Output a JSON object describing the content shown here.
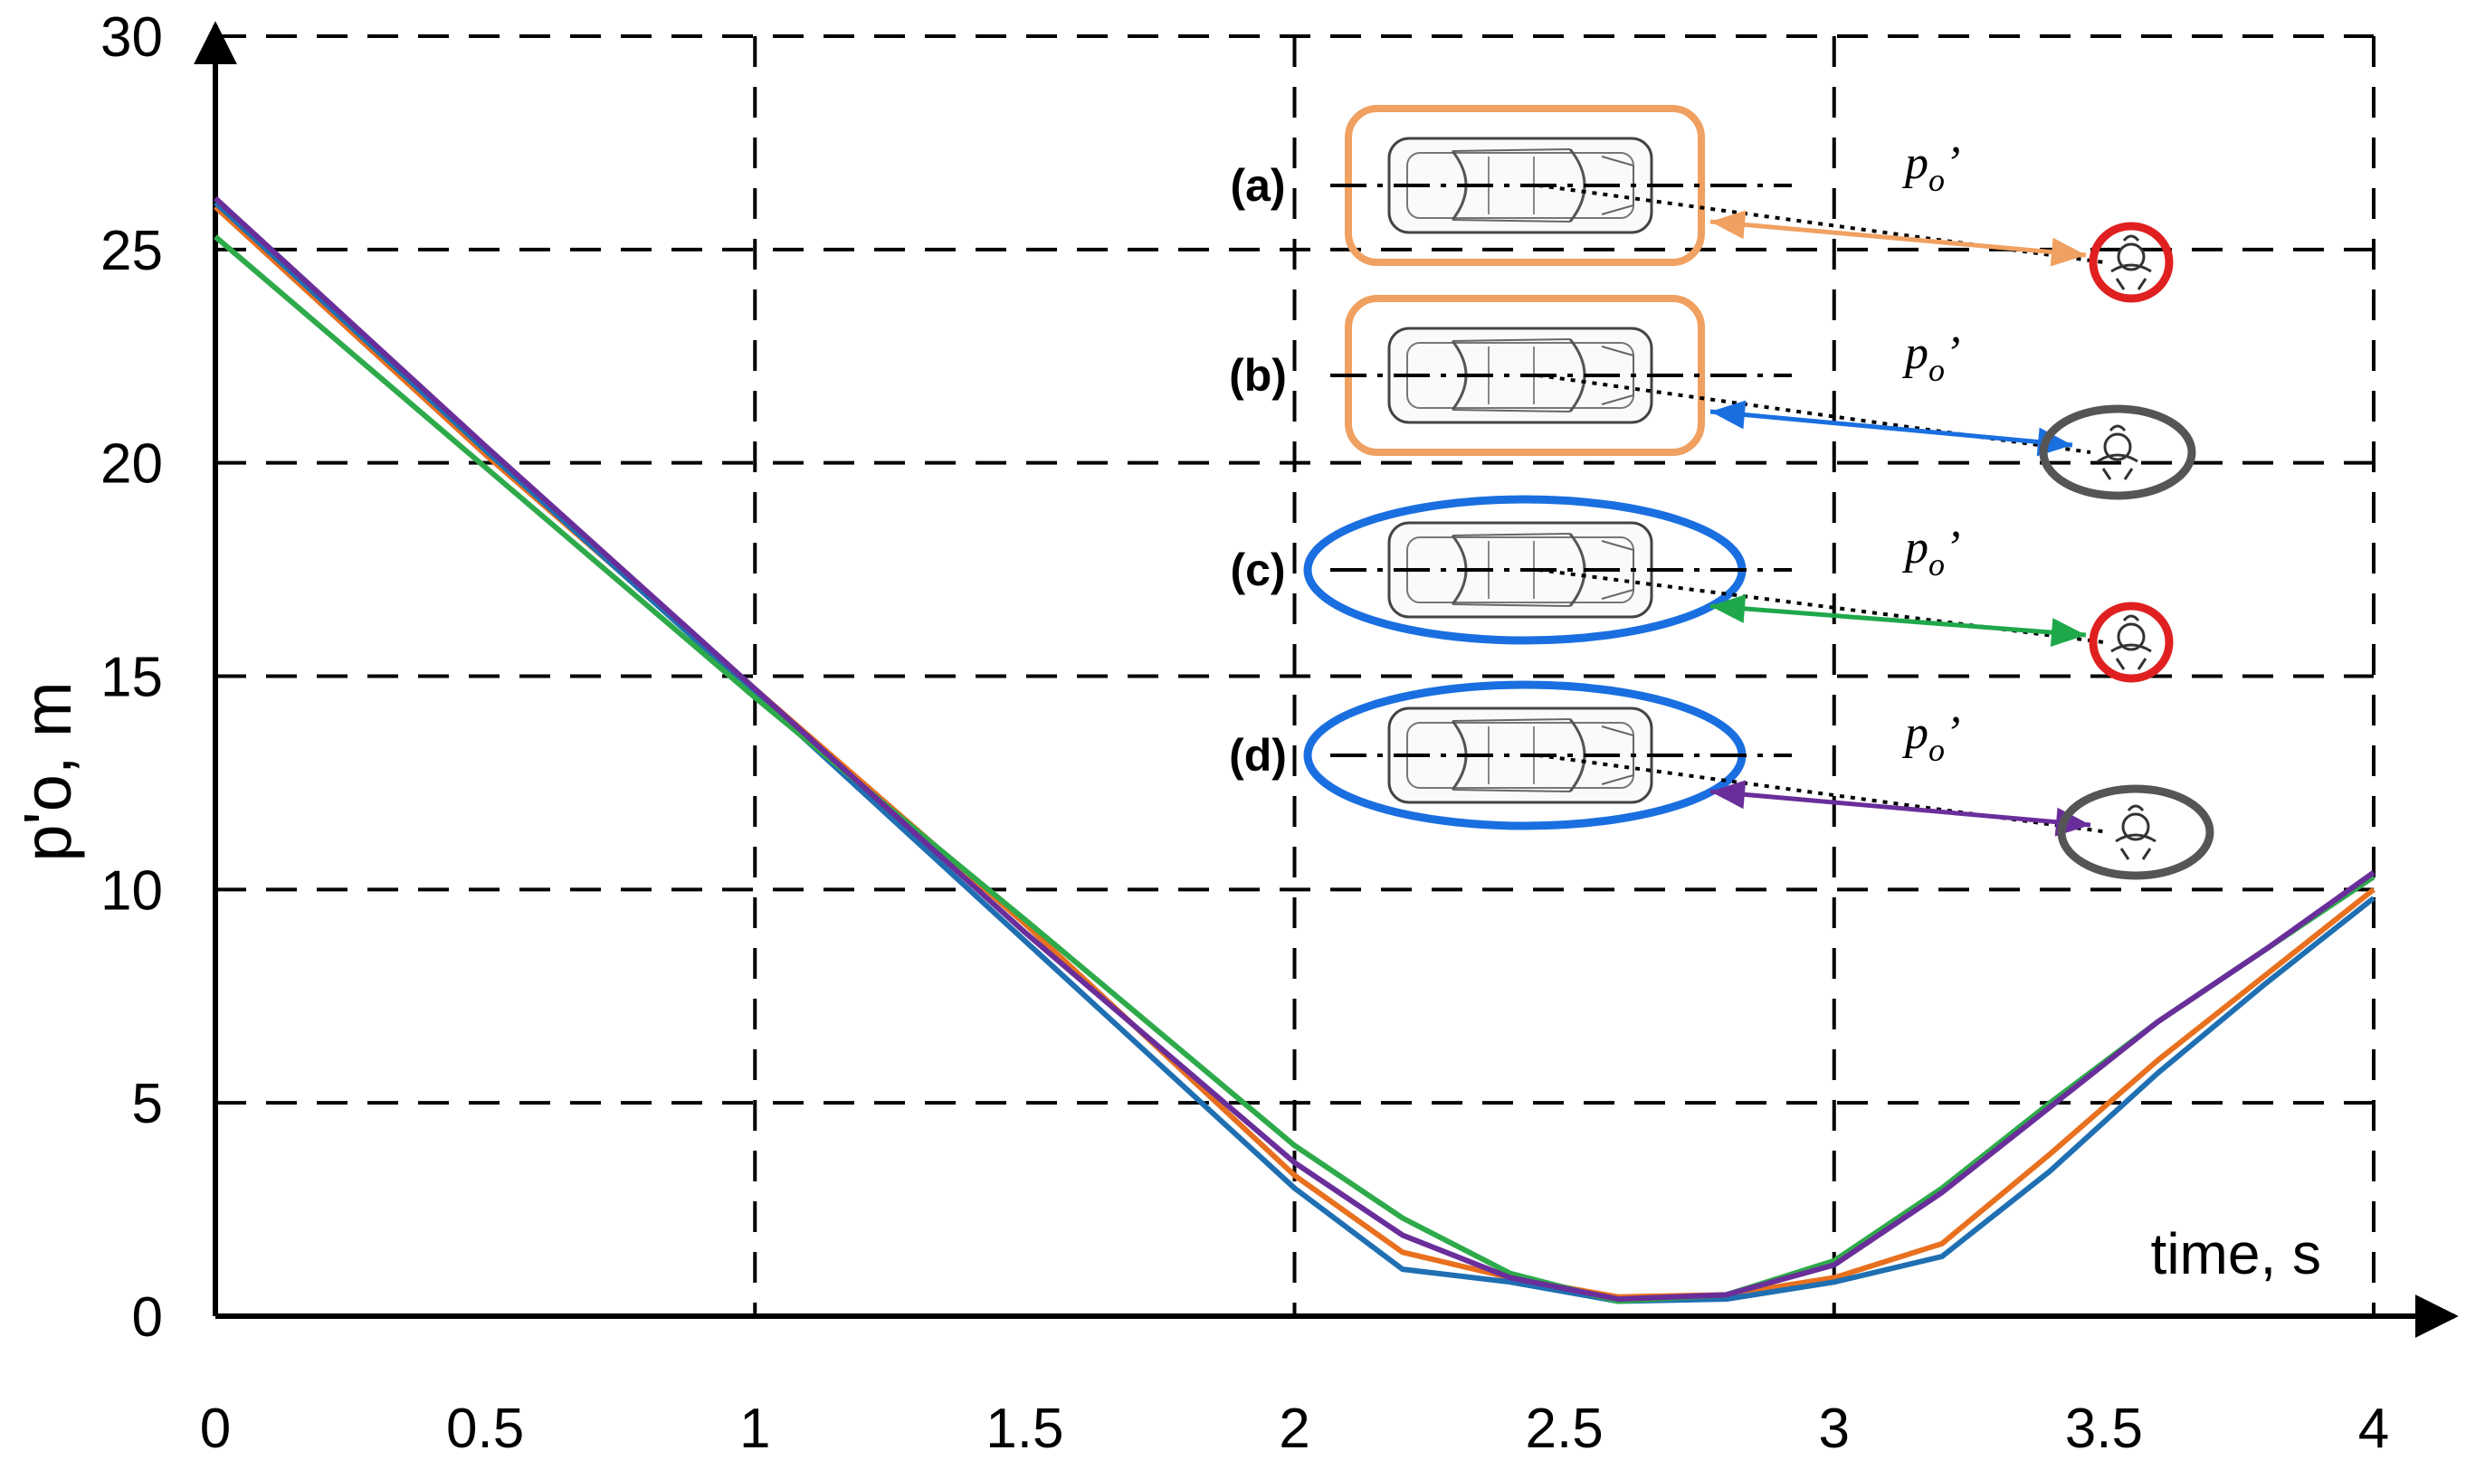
{
  "chart_data": {
    "type": "line",
    "title": "",
    "xlabel": "time, s",
    "ylabel": "p'o, m",
    "xlim": [
      0,
      4
    ],
    "ylim": [
      0,
      30
    ],
    "xticks": [
      "0",
      "0.5",
      "1",
      "1.5",
      "2",
      "2.5",
      "3",
      "3.5",
      "4"
    ],
    "yticks": [
      "0",
      "5",
      "10",
      "15",
      "20",
      "25",
      "30"
    ],
    "grid": true,
    "series": [
      {
        "name": "(a)",
        "color": "#E8701E",
        "x": [
          0,
          0.5,
          1,
          1.5,
          2,
          2.2,
          2.4,
          2.6,
          2.8,
          3,
          3.2,
          3.4,
          3.6,
          3.8,
          4
        ],
        "y": [
          26.0,
          20.2,
          14.7,
          9.2,
          3.3,
          1.5,
          0.9,
          0.45,
          0.5,
          0.9,
          1.7,
          3.8,
          6.0,
          8.0,
          10.0
        ]
      },
      {
        "name": "(b)",
        "color": "#1F6FB2",
        "x": [
          0,
          0.5,
          1,
          1.5,
          2,
          2.2,
          2.4,
          2.6,
          2.8,
          3,
          3.2,
          3.4,
          3.6,
          3.8,
          4
        ],
        "y": [
          26.1,
          20.3,
          14.6,
          8.8,
          3.0,
          1.1,
          0.8,
          0.35,
          0.4,
          0.8,
          1.4,
          3.4,
          5.7,
          7.8,
          9.8
        ]
      },
      {
        "name": "(c)",
        "color": "#2EAA4A",
        "x": [
          0,
          0.5,
          1,
          1.5,
          2,
          2.2,
          2.4,
          2.6,
          2.8,
          3,
          3.2,
          3.4,
          3.6,
          3.8,
          4
        ],
        "y": [
          25.3,
          19.9,
          14.5,
          9.3,
          4.0,
          2.3,
          1.0,
          0.35,
          0.5,
          1.3,
          3.0,
          5.0,
          6.9,
          8.6,
          10.3
        ]
      },
      {
        "name": "(d)",
        "color": "#6A2E9A",
        "x": [
          0,
          0.5,
          1,
          1.5,
          2,
          2.2,
          2.4,
          2.6,
          2.8,
          3,
          3.2,
          3.4,
          3.6,
          3.8,
          4
        ],
        "y": [
          26.2,
          20.4,
          14.7,
          9.0,
          3.6,
          1.9,
          0.9,
          0.4,
          0.5,
          1.2,
          2.9,
          4.9,
          6.9,
          8.6,
          10.4
        ]
      }
    ],
    "inset": {
      "panels": [
        {
          "label": "(a)",
          "distance_label": "p",
          "subscript": "o",
          "prime": "’",
          "vehicle_frame": "rounded-rectangle",
          "frame_color": "#F0A060",
          "pedestrian_frame_color": "#E02020",
          "arrow_color": "#F0A060"
        },
        {
          "label": "(b)",
          "distance_label": "p",
          "subscript": "o",
          "prime": "’",
          "vehicle_frame": "rounded-rectangle",
          "frame_color": "#F0A060",
          "pedestrian_frame_color": "#555555",
          "arrow_color": "#1A6FE0"
        },
        {
          "label": "(c)",
          "distance_label": "p",
          "subscript": "o",
          "prime": "’",
          "vehicle_frame": "ellipse",
          "frame_color": "#1A6FE0",
          "pedestrian_frame_color": "#E02020",
          "arrow_color": "#1FA84A"
        },
        {
          "label": "(d)",
          "distance_label": "p",
          "subscript": "o",
          "prime": "’",
          "vehicle_frame": "ellipse",
          "frame_color": "#1A6FE0",
          "pedestrian_frame_color": "#555555",
          "arrow_color": "#6A2E9A"
        }
      ]
    }
  }
}
